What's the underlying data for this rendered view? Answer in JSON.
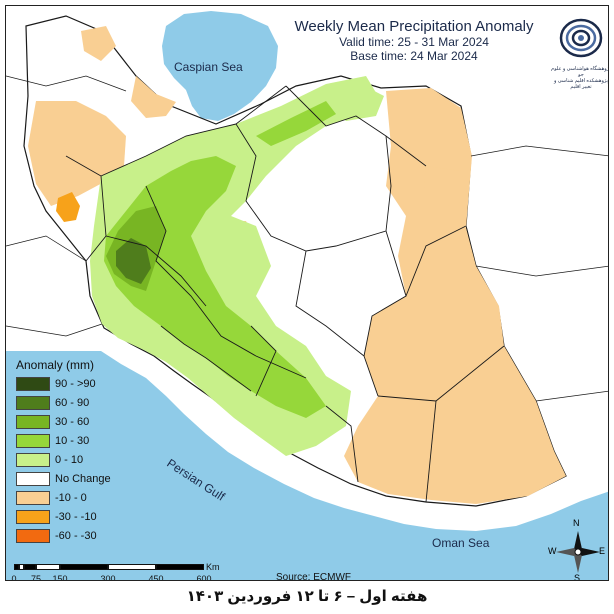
{
  "header": {
    "title": "Weekly Mean Precipitation Anomaly",
    "valid_time": "Valid time: 25 - 31 Mar 2024",
    "base_time": "Base time: 24 Mar 2024"
  },
  "logo": {
    "text": "پژوهشگاه هواشناسی و علوم جو",
    "subtext": "پژوهشکده اقلیم شناسی و تغییر اقلیم",
    "icon": "swirl-logo-icon"
  },
  "map_labels": {
    "caspian": "Caspian Sea",
    "persian_gulf": "Persian Gulf",
    "oman": "Oman Sea"
  },
  "legend": {
    "title": "Anomaly (mm)",
    "items": [
      {
        "label": "90 - >90",
        "color": "#2f4a14"
      },
      {
        "label": "60 - 90",
        "color": "#4f7d1c"
      },
      {
        "label": "30 - 60",
        "color": "#78b523"
      },
      {
        "label": "10 - 30",
        "color": "#96d73a"
      },
      {
        "label": "0 - 10",
        "color": "#c8f08a"
      },
      {
        "label": "No Change",
        "color": "#ffffff"
      },
      {
        "label": "-10 - 0",
        "color": "#f9cf93"
      },
      {
        "label": "-30 - -10",
        "color": "#f7a21a"
      },
      {
        "label": "-60 - -30",
        "color": "#f26a10"
      }
    ]
  },
  "scale_bar": {
    "unit": "Km",
    "ticks": [
      "0",
      "75",
      "150",
      "300",
      "450",
      "600"
    ]
  },
  "compass": {
    "n": "N",
    "s": "S",
    "e": "E",
    "w": "W",
    "icon": "compass-rose-icon"
  },
  "source": "Source: ECMWF",
  "footer": "هفته اول – ۶ تا ۱۲ فروردین ۱۴۰۳",
  "colors": {
    "sea": "#8fcbe8",
    "border": "#1a1a1a",
    "title": "#1b2a4a"
  }
}
